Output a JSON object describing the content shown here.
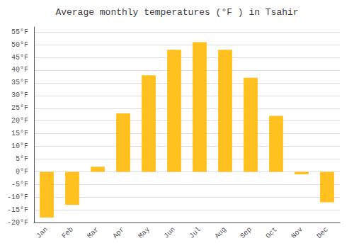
{
  "chart_data": {
    "type": "bar",
    "title": "Average monthly temperatures (°F ) in Tsahir",
    "categories": [
      "Jan",
      "Feb",
      "Mar",
      "Apr",
      "May",
      "Jun",
      "Jul",
      "Aug",
      "Sep",
      "Oct",
      "Nov",
      "Dec"
    ],
    "values": [
      -18,
      -13,
      2,
      23,
      38,
      48,
      51,
      48,
      37,
      22,
      -1,
      -12
    ],
    "color": "#FFC020",
    "ylim": [
      -20,
      57
    ],
    "yticks": [
      {
        "value": -20,
        "label": "-20°F"
      },
      {
        "value": -15,
        "label": "-15°F"
      },
      {
        "value": -10,
        "label": "-10°F"
      },
      {
        "value": -5,
        "label": "-5°F"
      },
      {
        "value": 0,
        "label": "0°F"
      },
      {
        "value": 5,
        "label": "5°F"
      },
      {
        "value": 10,
        "label": "10°F"
      },
      {
        "value": 15,
        "label": "15°F"
      },
      {
        "value": 20,
        "label": "20°F"
      },
      {
        "value": 25,
        "label": "25°F"
      },
      {
        "value": 30,
        "label": "30°F"
      },
      {
        "value": 35,
        "label": "35°F"
      },
      {
        "value": 40,
        "label": "40°F"
      },
      {
        "value": 45,
        "label": "45°F"
      },
      {
        "value": 50,
        "label": "50°F"
      },
      {
        "value": 55,
        "label": "55°F"
      }
    ],
    "grid": true
  }
}
